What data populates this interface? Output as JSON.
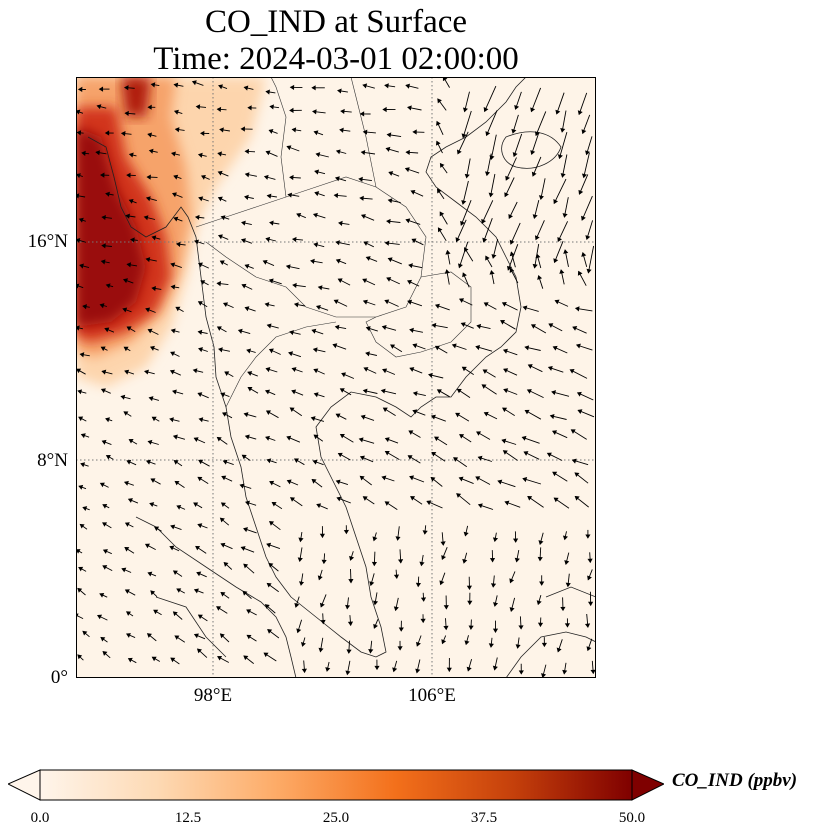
{
  "title": {
    "line1": "CO_IND at Surface",
    "line2": "Time: 2024-03-01 02:00:00"
  },
  "map": {
    "y_ticks": [
      "16°N",
      "8°N",
      "0°"
    ],
    "x_ticks": [
      "98°E",
      "106°E"
    ],
    "field": "CO_IND",
    "colormap": [
      "#fff5eb",
      "#fdd9b3",
      "#fdab67",
      "#f3701b",
      "#c5400b",
      "#7f0000"
    ],
    "high_concentration_region": "northwest corner (Bay of Bengal / Myanmar coast)"
  },
  "colorbar": {
    "label": "CO_IND (ppbv)",
    "ticks": [
      "0.0",
      "12.5",
      "25.0",
      "37.5",
      "50.0"
    ],
    "min": 0.0,
    "max": 50.0,
    "extend": "both"
  }
}
